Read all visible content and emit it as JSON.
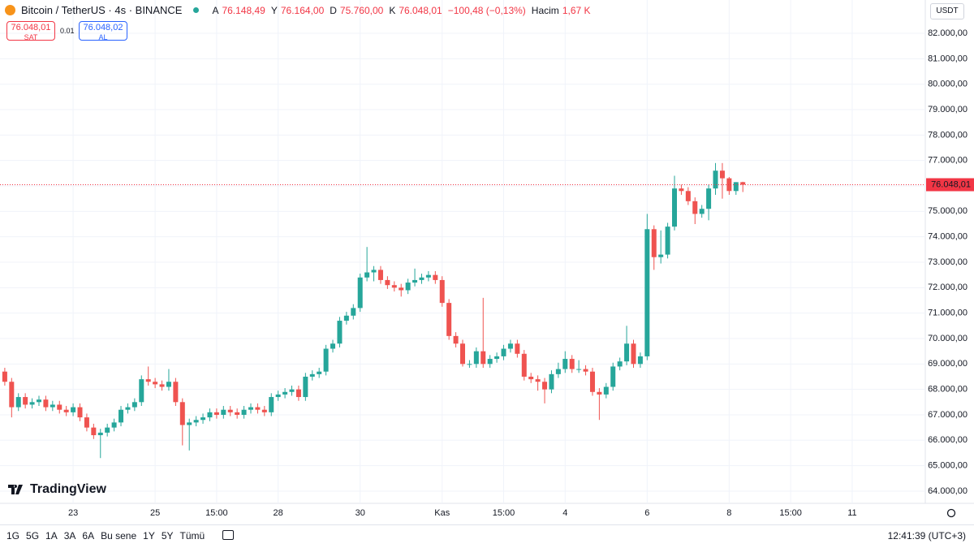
{
  "header": {
    "symbol": "Bitcoin / TetherUS · 4s · BINANCE",
    "ohlc": [
      {
        "key": "A",
        "value": "76.148,49"
      },
      {
        "key": "Y",
        "value": "76.164,00"
      },
      {
        "key": "D",
        "value": "75.760,00"
      },
      {
        "key": "K",
        "value": "76.048,01"
      }
    ],
    "change": "−100,48 (−0,13%)",
    "volume_key": "Hacim",
    "volume": "1,67 K"
  },
  "sell": {
    "price": "76.048,01",
    "label": "SAT"
  },
  "spread": "0.01",
  "buy": {
    "price": "76.048,02",
    "label": "AL"
  },
  "currency": "USDT",
  "logo": "TradingView",
  "ranges": [
    "1G",
    "5G",
    "1A",
    "3A",
    "6A",
    "Bu sene",
    "1Y",
    "5Y",
    "Tümü"
  ],
  "clock": "12:41:39 (UTC+3)",
  "chart_data": {
    "type": "candlestick",
    "up_color": "#26a69a",
    "down_color": "#ef5350",
    "grid": true,
    "xlim": [
      -0.7,
      134.7
    ],
    "xticks": [
      {
        "value": 10,
        "label": "23"
      },
      {
        "value": 22,
        "label": "25"
      },
      {
        "value": 31,
        "label": "15:00"
      },
      {
        "value": 40,
        "label": "28"
      },
      {
        "value": 52,
        "label": "30"
      },
      {
        "value": 64,
        "label": "Kas"
      },
      {
        "value": 73,
        "label": "15:00"
      },
      {
        "value": 82,
        "label": "4"
      },
      {
        "value": 94,
        "label": "6"
      },
      {
        "value": 106,
        "label": "8"
      },
      {
        "value": 115,
        "label": "15:00"
      },
      {
        "value": 124,
        "label": "11"
      }
    ],
    "ylim": [
      63520,
      83310
    ],
    "yticks": [
      {
        "value": 64000,
        "label": "64.000,00"
      },
      {
        "value": 65000,
        "label": "65.000,00"
      },
      {
        "value": 66000,
        "label": "66.000,00"
      },
      {
        "value": 67000,
        "label": "67.000,00"
      },
      {
        "value": 68000,
        "label": "68.000,00"
      },
      {
        "value": 69000,
        "label": "69.000,00"
      },
      {
        "value": 70000,
        "label": "70.000,00"
      },
      {
        "value": 71000,
        "label": "71.000,00"
      },
      {
        "value": 72000,
        "label": "72.000,00"
      },
      {
        "value": 73000,
        "label": "73.000,00"
      },
      {
        "value": 74000,
        "label": "74.000,00"
      },
      {
        "value": 75000,
        "label": "75.000,00"
      },
      {
        "value": 76000,
        "label": "76.000,00"
      },
      {
        "value": 77000,
        "label": "77.000,00"
      },
      {
        "value": 78000,
        "label": "78.000,00"
      },
      {
        "value": 79000,
        "label": "79.000,00"
      },
      {
        "value": 80000,
        "label": "80.000,00"
      },
      {
        "value": 81000,
        "label": "81.000,00"
      },
      {
        "value": 82000,
        "label": "82.000,00"
      }
    ],
    "price_line": {
      "value": 76048.01,
      "label": "76.048,01",
      "color": "#f23645"
    },
    "ohlc": [
      [
        68700,
        68850,
        68150,
        68300
      ],
      [
        68300,
        68450,
        66900,
        67300
      ],
      [
        67300,
        67850,
        67150,
        67700
      ],
      [
        67700,
        67850,
        67250,
        67400
      ],
      [
        67400,
        67650,
        67250,
        67500
      ],
      [
        67500,
        67750,
        67350,
        67600
      ],
      [
        67600,
        67750,
        67150,
        67300
      ],
      [
        67300,
        67550,
        67150,
        67400
      ],
      [
        67400,
        67550,
        67050,
        67200
      ],
      [
        67200,
        67350,
        66950,
        67100
      ],
      [
        67100,
        67450,
        66950,
        67300
      ],
      [
        67300,
        67450,
        66750,
        66900
      ],
      [
        66900,
        67050,
        66350,
        66500
      ],
      [
        66500,
        66650,
        66050,
        66200
      ],
      [
        66200,
        66450,
        65300,
        66300
      ],
      [
        66300,
        66650,
        66150,
        66500
      ],
      [
        66500,
        66850,
        66350,
        66700
      ],
      [
        66700,
        67350,
        66550,
        67200
      ],
      [
        67200,
        67450,
        67050,
        67300
      ],
      [
        67300,
        67650,
        67150,
        67500
      ],
      [
        67500,
        68550,
        67350,
        68400
      ],
      [
        68400,
        68900,
        68150,
        68300
      ],
      [
        68300,
        68450,
        68050,
        68200
      ],
      [
        68200,
        68350,
        67950,
        68100
      ],
      [
        68100,
        68800,
        67950,
        68300
      ],
      [
        68300,
        68450,
        67350,
        67500
      ],
      [
        67500,
        67650,
        65800,
        66600
      ],
      [
        66600,
        66850,
        65600,
        66700
      ],
      [
        66700,
        66950,
        66550,
        66800
      ],
      [
        66800,
        67050,
        66650,
        66900
      ],
      [
        66900,
        67250,
        66750,
        67100
      ],
      [
        67100,
        67250,
        66850,
        67000
      ],
      [
        67000,
        67350,
        66850,
        67200
      ],
      [
        67200,
        67350,
        66950,
        67100
      ],
      [
        67100,
        67250,
        66850,
        67000
      ],
      [
        67000,
        67350,
        66850,
        67200
      ],
      [
        67200,
        67450,
        67050,
        67300
      ],
      [
        67300,
        67450,
        67050,
        67200
      ],
      [
        67200,
        67350,
        66950,
        67100
      ],
      [
        67100,
        67850,
        66950,
        67700
      ],
      [
        67700,
        67950,
        67550,
        67800
      ],
      [
        67800,
        68050,
        67650,
        67900
      ],
      [
        67900,
        68150,
        67750,
        68000
      ],
      [
        68000,
        68150,
        67550,
        67700
      ],
      [
        67700,
        68650,
        67550,
        68500
      ],
      [
        68500,
        68750,
        68350,
        68600
      ],
      [
        68600,
        68850,
        68450,
        68700
      ],
      [
        68700,
        69750,
        68550,
        69600
      ],
      [
        69600,
        69950,
        69450,
        69800
      ],
      [
        69800,
        70850,
        69650,
        70700
      ],
      [
        70700,
        71050,
        70550,
        70900
      ],
      [
        70900,
        71350,
        70750,
        71200
      ],
      [
        71200,
        72550,
        71050,
        72400
      ],
      [
        72400,
        73600,
        72250,
        72600
      ],
      [
        72600,
        72850,
        72250,
        72700
      ],
      [
        72700,
        72850,
        72150,
        72300
      ],
      [
        72300,
        72450,
        71950,
        72100
      ],
      [
        72100,
        72250,
        71850,
        72000
      ],
      [
        72000,
        72150,
        71650,
        71900
      ],
      [
        71900,
        72350,
        71750,
        72200
      ],
      [
        72200,
        72750,
        72050,
        72300
      ],
      [
        72300,
        72550,
        72150,
        72400
      ],
      [
        72400,
        72650,
        72250,
        72500
      ],
      [
        72500,
        72650,
        72150,
        72300
      ],
      [
        72300,
        72450,
        71250,
        71400
      ],
      [
        71400,
        71550,
        69950,
        70100
      ],
      [
        70100,
        70250,
        69650,
        69800
      ],
      [
        69800,
        69950,
        68900,
        69000
      ],
      [
        69000,
        69150,
        68850,
        69000
      ],
      [
        69000,
        69650,
        68850,
        69500
      ],
      [
        69500,
        71600,
        68850,
        69000
      ],
      [
        69000,
        69350,
        68850,
        69200
      ],
      [
        69200,
        69450,
        69050,
        69300
      ],
      [
        69300,
        69750,
        69150,
        69600
      ],
      [
        69600,
        69950,
        69450,
        69800
      ],
      [
        69800,
        69950,
        69250,
        69400
      ],
      [
        69400,
        69550,
        68350,
        68500
      ],
      [
        68500,
        68650,
        68250,
        68400
      ],
      [
        68400,
        68550,
        67950,
        68300
      ],
      [
        68300,
        68450,
        67450,
        68000
      ],
      [
        68000,
        68750,
        67850,
        68600
      ],
      [
        68600,
        69050,
        68450,
        68800
      ],
      [
        68800,
        69500,
        68650,
        69200
      ],
      [
        69200,
        69350,
        68650,
        68800
      ],
      [
        68800,
        69150,
        68650,
        68800
      ],
      [
        68800,
        68950,
        68550,
        68700
      ],
      [
        68700,
        68850,
        67750,
        67900
      ],
      [
        67900,
        68050,
        66800,
        67800
      ],
      [
        67800,
        68250,
        67650,
        68100
      ],
      [
        68100,
        69050,
        67950,
        68900
      ],
      [
        68900,
        69250,
        68750,
        69100
      ],
      [
        69100,
        70500,
        68950,
        69800
      ],
      [
        69800,
        69950,
        68850,
        69000
      ],
      [
        69000,
        69450,
        68850,
        69300
      ],
      [
        69300,
        74900,
        69150,
        74300
      ],
      [
        74300,
        74450,
        72700,
        73200
      ],
      [
        73200,
        74250,
        72950,
        73300
      ],
      [
        73300,
        74550,
        73150,
        74400
      ],
      [
        74400,
        76400,
        74250,
        75900
      ],
      [
        75900,
        76050,
        75650,
        75800
      ],
      [
        75800,
        75950,
        75250,
        75400
      ],
      [
        75400,
        75550,
        74500,
        74900
      ],
      [
        74900,
        75250,
        74750,
        75100
      ],
      [
        75100,
        76050,
        74650,
        75900
      ],
      [
        75900,
        76900,
        75650,
        76600
      ],
      [
        76600,
        76900,
        75500,
        76300
      ],
      [
        76300,
        76350,
        75650,
        75800
      ],
      [
        75800,
        76150,
        75650,
        76148.49
      ],
      [
        76148.49,
        76164,
        75760,
        76048.01
      ]
    ]
  }
}
